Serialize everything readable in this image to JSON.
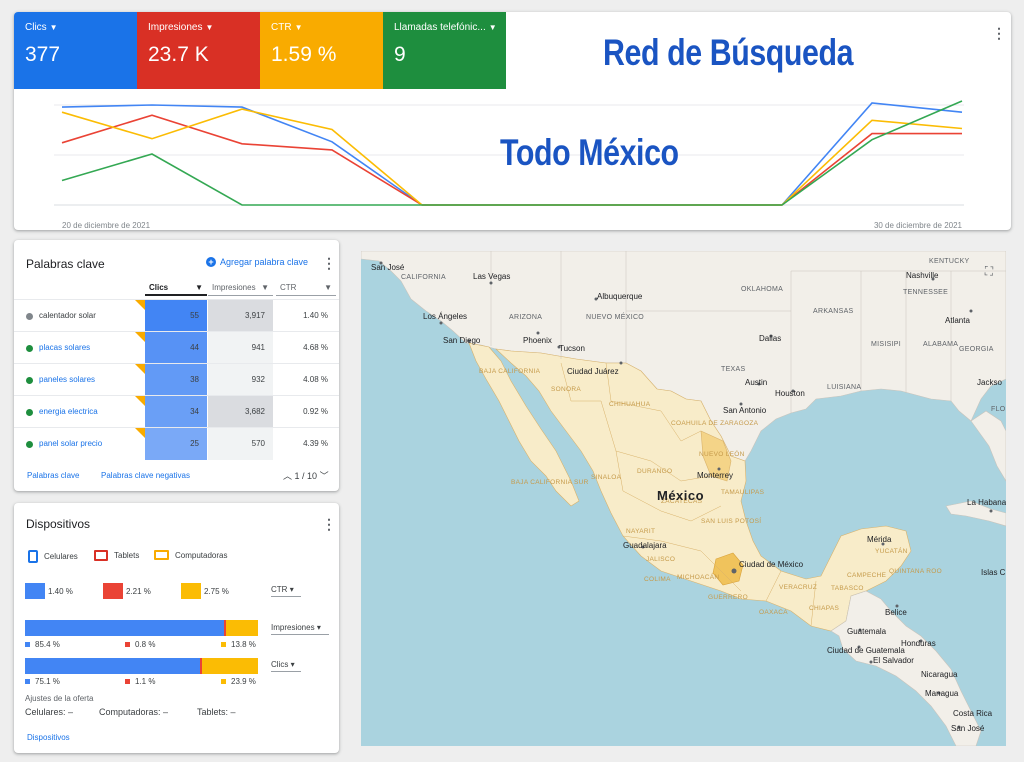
{
  "metrics": [
    {
      "label": "Clics",
      "value": "377",
      "color": "#1a73e8"
    },
    {
      "label": "Impresiones",
      "value": "23.7 K",
      "color": "#d93025"
    },
    {
      "label": "CTR",
      "value": "1.59 %",
      "color": "#f9ab00"
    },
    {
      "label": "Llamadas telefónic...",
      "value": "9",
      "color": "#1e8e3e"
    }
  ],
  "overlay": {
    "title1": "Red de Búsqueda",
    "title2": "Todo México"
  },
  "chart_data": {
    "type": "line",
    "x": [
      "20 de diciembre de 2021",
      "21",
      "22",
      "23",
      "24",
      "25",
      "26",
      "27",
      "28",
      "29",
      "30 de diciembre de 2021"
    ],
    "x_tick_labels": [
      "20 de diciembre de 2021",
      "30 de diciembre de 2021"
    ],
    "ylim": [
      0,
      1
    ],
    "grid": true,
    "series": [
      {
        "color": "#4285f4",
        "values": [
          0.96,
          0.98,
          0.96,
          0.62,
          0,
          0,
          0,
          0,
          0,
          1.0,
          0.91
        ]
      },
      {
        "color": "#ea4335",
        "values": [
          0.61,
          0.88,
          0.6,
          0.54,
          0,
          0,
          0,
          0,
          0,
          0.7,
          0.7
        ]
      },
      {
        "color": "#fbbc04",
        "values": [
          0.91,
          0.65,
          0.94,
          0.74,
          0,
          0,
          0,
          0,
          0,
          0.83,
          0.75
        ]
      },
      {
        "color": "#34a853",
        "values": [
          0.24,
          0.5,
          0,
          0,
          0,
          0,
          0,
          0,
          0,
          0.64,
          1.02
        ]
      }
    ]
  },
  "keywords": {
    "title": "Palabras clave",
    "add_label": "Agregar palabra clave",
    "columns": {
      "clics": "Clics",
      "impresiones": "Impresiones",
      "ctr": "CTR"
    },
    "rows": [
      {
        "name": "calentador solar",
        "dot": "#80868b",
        "clics": "55",
        "impresiones": "3,917",
        "ctr": "1.40 %"
      },
      {
        "name": "placas solares",
        "dot": "#1e8e3e",
        "clics": "44",
        "impresiones": "941",
        "ctr": "4.68 %"
      },
      {
        "name": "paneles solares",
        "dot": "#1e8e3e",
        "clics": "38",
        "impresiones": "932",
        "ctr": "4.08 %"
      },
      {
        "name": "energia electrica",
        "dot": "#1e8e3e",
        "clics": "34",
        "impresiones": "3,682",
        "ctr": "0.92 %"
      },
      {
        "name": "panel solar precio",
        "dot": "#1e8e3e",
        "clics": "25",
        "impresiones": "570",
        "ctr": "4.39 %"
      }
    ],
    "footer_link1": "Palabras clave",
    "footer_link2": "Palabras clave negativas",
    "pager": "1 / 10"
  },
  "devices": {
    "title": "Dispositivos",
    "legend": [
      {
        "label": "Celulares",
        "color": "#1a73e8"
      },
      {
        "label": "Tablets",
        "color": "#d93025"
      },
      {
        "label": "Computadoras",
        "color": "#f9ab00"
      }
    ],
    "ctr": [
      {
        "label": "1.40 %",
        "color": "#4285f4"
      },
      {
        "label": "2.21 %",
        "color": "#ea4335"
      },
      {
        "label": "2.75 %",
        "color": "#fbbc04"
      }
    ],
    "dropdown_ctr": "CTR",
    "impresiones": {
      "dropdown": "Impresiones",
      "values": [
        85.4,
        0.8,
        13.8
      ],
      "labels": [
        "85.4 %",
        "0.8 %",
        "13.8 %"
      ]
    },
    "clics": {
      "dropdown": "Clics",
      "values": [
        75.1,
        1.1,
        23.9
      ],
      "labels": [
        "75.1 %",
        "1.1 %",
        "23.9 %"
      ]
    },
    "ajustes_title": "Ajustes de la oferta",
    "ajustes": [
      "Celulares: –",
      "Computadoras: –",
      "Tablets: –"
    ],
    "footer_link": "Dispositivos"
  },
  "map": {
    "country": "México",
    "cities": [
      "San José",
      "Las Vegas",
      "Albuquerque",
      "Los Ángeles",
      "Phoenix",
      "Tucson",
      "San Diego",
      "Ciudad Juárez",
      "Dallas",
      "Austin",
      "Houston",
      "San Antonio",
      "Monterrey",
      "Guadalajara",
      "Ciudad de México",
      "Mérida",
      "Belice",
      "Guatemala",
      "Ciudad de Guatemala",
      "El Salvador",
      "Honduras",
      "Nicaragua",
      "Managua",
      "Costa Rica",
      "San José",
      "Atlanta",
      "Nashville",
      "Jackso",
      "La Habana",
      "Islas C"
    ],
    "us_states": [
      "CALIFORNIA",
      "ARIZONA",
      "NUEVO MÉXICO",
      "OKLAHOMA",
      "ARKANSAS",
      "TEXAS",
      "LUISIANA",
      "MISISIPI",
      "ALABAMA",
      "GEORGIA",
      "TENNESSEE",
      "KENTUCKY",
      "FLO"
    ],
    "mx_states": [
      "BAJA CALIFORNIA",
      "SONORA",
      "CHIHUAHUA",
      "COAHUILA DE ZARAGOZA",
      "NUEVO LEÓN",
      "BAJA CALIFORNIA SUR",
      "SINALOA",
      "DURANGO",
      "TAMAULIPAS",
      "ZACATECAS",
      "SAN LUIS POTOSÍ",
      "NAYARIT",
      "JALISCO",
      "COLIMA",
      "MICHOACÁN",
      "GUERRERO",
      "OAXACA",
      "VERACRUZ",
      "CHIAPAS",
      "TABASCO",
      "CAMPECHE",
      "YUCATÁN",
      "QUINTANA ROO"
    ]
  }
}
